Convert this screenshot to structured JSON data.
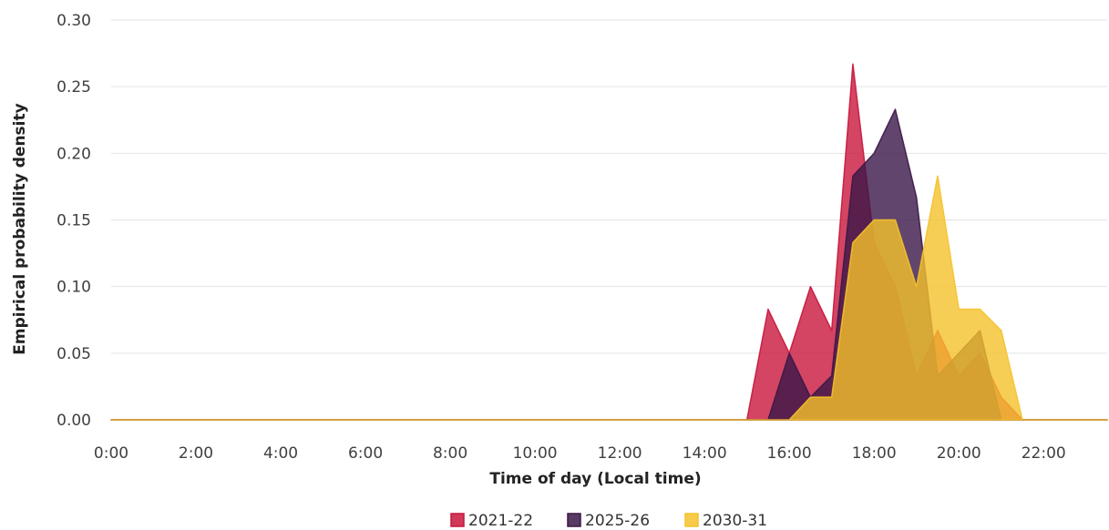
{
  "chart_data": {
    "type": "area",
    "xlabel": "Time of day (Local time)",
    "ylabel": "Empirical probability density",
    "xlim": [
      0,
      23.5
    ],
    "ylim": [
      0,
      0.3
    ],
    "x_ticks": [
      0,
      2,
      4,
      6,
      8,
      10,
      12,
      14,
      16,
      18,
      20,
      22
    ],
    "x_tick_labels": [
      "0:00",
      "2:00",
      "4:00",
      "6:00",
      "8:00",
      "10:00",
      "12:00",
      "14:00",
      "16:00",
      "18:00",
      "20:00",
      "22:00"
    ],
    "y_ticks": [
      0,
      0.05,
      0.1,
      0.15,
      0.2,
      0.25,
      0.3
    ],
    "y_tick_labels": [
      "0.00",
      "0.05",
      "0.10",
      "0.15",
      "0.20",
      "0.25",
      "0.30"
    ],
    "grid": "horizontal",
    "legend": "bottom",
    "x": [
      0.0,
      0.5,
      1.0,
      1.5,
      2.0,
      2.5,
      3.0,
      3.5,
      4.0,
      4.5,
      5.0,
      5.5,
      6.0,
      6.5,
      7.0,
      7.5,
      8.0,
      8.5,
      9.0,
      9.5,
      10.0,
      10.5,
      11.0,
      11.5,
      12.0,
      12.5,
      13.0,
      13.5,
      14.0,
      14.5,
      15.0,
      15.5,
      16.0,
      16.5,
      17.0,
      17.5,
      18.0,
      18.5,
      19.0,
      19.5,
      20.0,
      20.5,
      21.0,
      21.5,
      22.0,
      22.5,
      23.0,
      23.5
    ],
    "series": [
      {
        "name": "2021-22",
        "color": "#c8163c",
        "values": [
          0,
          0,
          0,
          0,
          0,
          0,
          0,
          0,
          0,
          0,
          0,
          0,
          0,
          0,
          0,
          0,
          0,
          0,
          0,
          0,
          0,
          0,
          0,
          0,
          0,
          0,
          0,
          0,
          0,
          0,
          0,
          0.083,
          0.05,
          0.1,
          0.067,
          0.267,
          0.133,
          0.1,
          0.033,
          0.067,
          0.033,
          0.05,
          0.017,
          0,
          0,
          0,
          0,
          0
        ]
      },
      {
        "name": "2025-26",
        "color": "#3b1747",
        "values": [
          0,
          0,
          0,
          0,
          0,
          0,
          0,
          0,
          0,
          0,
          0,
          0,
          0,
          0,
          0,
          0,
          0,
          0,
          0,
          0,
          0,
          0,
          0,
          0,
          0,
          0,
          0,
          0,
          0,
          0,
          0,
          0,
          0.05,
          0.017,
          0.033,
          0.183,
          0.2,
          0.233,
          0.167,
          0.033,
          0.05,
          0.067,
          0,
          0,
          0,
          0,
          0,
          0
        ]
      },
      {
        "name": "2030-31",
        "color": "#f5c22b",
        "values": [
          0,
          0,
          0,
          0,
          0,
          0,
          0,
          0,
          0,
          0,
          0,
          0,
          0,
          0,
          0,
          0,
          0,
          0,
          0,
          0,
          0,
          0,
          0,
          0,
          0,
          0,
          0,
          0,
          0,
          0,
          0,
          0,
          0,
          0.017,
          0.017,
          0.133,
          0.15,
          0.15,
          0.1,
          0.183,
          0.083,
          0.083,
          0.067,
          0,
          0,
          0,
          0,
          0
        ]
      }
    ]
  }
}
